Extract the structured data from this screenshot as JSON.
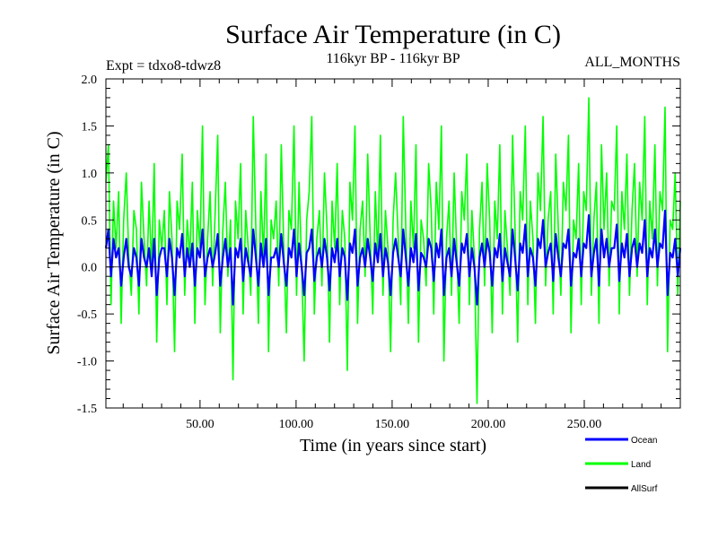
{
  "chart_data": {
    "type": "line",
    "title": "Surface Air Temperature (in C)",
    "subtitle_left": "Expt = tdxo8-tdwz8",
    "subtitle_center": "116kyr BP - 116kyr BP",
    "subtitle_right": "ALL_MONTHS",
    "xlabel": "Time (in years since start)",
    "ylabel": "Surface Air Temperature (in C)",
    "xlim": [
      1,
      300
    ],
    "ylim": [
      -1.5,
      2.0
    ],
    "x_ticks": [
      50,
      100,
      150,
      200,
      250
    ],
    "x_tick_labels": [
      "50.00",
      "100.00",
      "150.00",
      "200.00",
      "250.00"
    ],
    "y_ticks": [
      -1.5,
      -1.0,
      -0.5,
      0.0,
      0.5,
      1.0,
      1.5,
      2.0
    ],
    "y_tick_labels": [
      "-1.5",
      "-1.0",
      "-0.5",
      "0.0",
      "0.5",
      "1.0",
      "1.5",
      "2.0"
    ],
    "zero_line": true,
    "legend_placement": "bottom-right",
    "series": [
      {
        "name": "Land",
        "color": "#00ff00",
        "note_values": "monthly anomalies approx. between -1.45 and 1.8, mean approx. 0.25",
        "values": [
          0.9,
          1.3,
          -0.4,
          0.7,
          0.2,
          0.8,
          -0.6,
          0.5,
          1.0,
          0.1,
          -0.3,
          0.6,
          0.4,
          -0.5,
          0.9,
          0.3,
          -0.2,
          0.7,
          0.0,
          1.1,
          -0.8,
          0.5,
          0.2,
          0.6,
          -0.4,
          0.8,
          0.3,
          -0.9,
          0.7,
          0.4,
          1.2,
          -0.3,
          0.5,
          0.1,
          0.9,
          -0.6,
          0.6,
          0.2,
          1.5,
          -0.4,
          0.3,
          0.8,
          -0.2,
          0.6,
          1.4,
          -0.7,
          0.4,
          0.9,
          -0.1,
          0.5,
          -1.2,
          0.7,
          0.3,
          1.1,
          -0.5,
          0.6,
          0.2,
          -0.3,
          1.6,
          0.4,
          -0.6,
          0.8,
          0.1,
          1.2,
          -0.9,
          0.5,
          0.3,
          0.7,
          -0.2,
          1.3,
          0.2,
          -0.7,
          0.6,
          0.4,
          1.5,
          -0.3,
          0.9,
          0.0,
          -1.0,
          0.5,
          0.8,
          1.6,
          -0.5,
          0.3,
          0.6,
          -0.2,
          1.0,
          0.4,
          -0.8,
          0.7,
          0.2,
          1.1,
          -0.4,
          0.6,
          0.3,
          -1.1,
          0.9,
          0.5,
          1.5,
          -0.6,
          0.4,
          0.7,
          -0.1,
          1.2,
          0.3,
          -0.5,
          0.8,
          0.1,
          1.4,
          -0.3,
          0.6,
          0.2,
          -0.9,
          0.5,
          1.0,
          0.3,
          -0.4,
          1.6,
          0.4,
          -0.6,
          0.7,
          0.2,
          1.3,
          -0.8,
          0.5,
          0.3,
          -0.2,
          1.1,
          0.6,
          -0.5,
          0.9,
          0.4,
          1.5,
          -1.0,
          0.3,
          0.7,
          -0.3,
          1.0,
          0.2,
          -0.6,
          0.8,
          0.5,
          1.2,
          -0.4,
          0.6,
          0.1,
          -1.45,
          0.4,
          0.9,
          -0.2,
          1.1,
          0.5,
          -0.7,
          0.7,
          0.3,
          1.3,
          -0.5,
          0.6,
          0.2,
          -0.3,
          1.4,
          0.4,
          -0.8,
          0.8,
          0.5,
          1.5,
          -0.4,
          0.7,
          0.3,
          -0.6,
          1.0,
          0.6,
          1.6,
          -0.2,
          0.5,
          0.8,
          -0.5,
          1.2,
          0.4,
          -0.3,
          0.9,
          0.6,
          1.4,
          -0.7,
          0.5,
          0.3,
          1.1,
          -0.4,
          0.8,
          0.6,
          1.8,
          -0.3,
          0.5,
          0.9,
          -0.6,
          1.3,
          0.4,
          1.0,
          -0.2,
          0.7,
          0.6,
          1.5,
          -0.5,
          0.8,
          0.4,
          1.2,
          -0.3,
          0.6,
          1.1,
          -0.1,
          0.9,
          0.5,
          1.6,
          -0.4,
          0.7,
          0.3,
          1.3,
          -0.2,
          0.8,
          0.6,
          1.7,
          -0.9,
          0.5,
          0.4,
          1.0,
          -0.3,
          0.7
        ]
      },
      {
        "name": "Ocean",
        "color": "#0000ff",
        "note_values": "monthly anomalies approx. between -0.45 and 0.6, mean approx. 0.12",
        "values": [
          0.2,
          0.4,
          -0.1,
          0.3,
          0.1,
          0.2,
          -0.2,
          0.1,
          0.3,
          0.0,
          -0.1,
          0.2,
          0.1,
          -0.2,
          0.3,
          0.1,
          0.0,
          0.2,
          -0.1,
          0.3,
          -0.3,
          0.1,
          0.2,
          0.2,
          -0.1,
          0.3,
          0.1,
          -0.3,
          0.2,
          0.1,
          0.35,
          -0.1,
          0.2,
          0.0,
          0.25,
          -0.2,
          0.2,
          0.1,
          0.4,
          -0.1,
          0.1,
          0.2,
          0.0,
          0.15,
          0.35,
          -0.2,
          0.1,
          0.3,
          0.0,
          0.2,
          -0.4,
          0.2,
          0.1,
          0.3,
          -0.15,
          0.2,
          0.05,
          -0.1,
          0.4,
          0.1,
          -0.2,
          0.25,
          0.0,
          0.3,
          -0.3,
          0.1,
          0.1,
          0.2,
          0.0,
          0.35,
          0.05,
          -0.2,
          0.2,
          0.1,
          0.4,
          -0.1,
          0.25,
          0.0,
          -0.3,
          0.15,
          0.2,
          0.4,
          -0.15,
          0.1,
          0.2,
          0.0,
          0.3,
          0.1,
          -0.25,
          0.2,
          0.05,
          0.3,
          -0.1,
          0.2,
          0.1,
          -0.35,
          0.25,
          0.15,
          0.4,
          -0.2,
          0.1,
          0.2,
          0.0,
          0.3,
          0.1,
          -0.15,
          0.25,
          0.05,
          0.35,
          -0.1,
          0.2,
          0.05,
          -0.3,
          0.15,
          0.3,
          0.1,
          -0.1,
          0.4,
          0.1,
          -0.2,
          0.2,
          0.05,
          0.35,
          -0.25,
          0.15,
          0.1,
          0.0,
          0.3,
          0.2,
          -0.15,
          0.25,
          0.1,
          0.4,
          -0.3,
          0.1,
          0.2,
          -0.1,
          0.3,
          0.05,
          -0.2,
          0.25,
          0.15,
          0.35,
          -0.1,
          0.2,
          0.0,
          -0.4,
          0.1,
          0.25,
          0.0,
          0.3,
          0.15,
          -0.2,
          0.2,
          0.1,
          0.35,
          -0.15,
          0.2,
          0.05,
          -0.1,
          0.4,
          0.1,
          -0.25,
          0.25,
          0.15,
          0.45,
          -0.1,
          0.2,
          0.1,
          -0.2,
          0.3,
          0.2,
          0.5,
          0.0,
          0.15,
          0.25,
          -0.15,
          0.35,
          0.1,
          -0.1,
          0.25,
          0.2,
          0.4,
          -0.2,
          0.15,
          0.1,
          0.3,
          -0.1,
          0.25,
          0.2,
          0.55,
          -0.1,
          0.15,
          0.3,
          -0.2,
          0.4,
          0.1,
          0.3,
          0.0,
          0.2,
          0.2,
          0.45,
          -0.15,
          0.25,
          0.1,
          0.35,
          -0.1,
          0.2,
          0.3,
          0.0,
          0.25,
          0.15,
          0.5,
          -0.1,
          0.2,
          0.1,
          0.4,
          0.0,
          0.25,
          0.2,
          0.6,
          -0.3,
          0.15,
          0.1,
          0.3,
          -0.1,
          0.2
        ]
      },
      {
        "name": "AllSurf",
        "color": "#000000",
        "values": []
      }
    ]
  }
}
